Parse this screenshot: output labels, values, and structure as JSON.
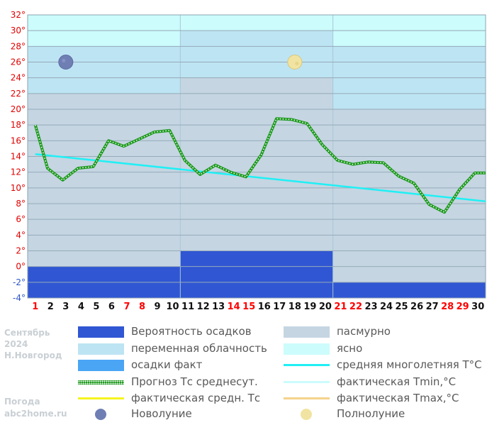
{
  "side": {
    "month": "Сентябрь",
    "year": "2024",
    "city": "Н.Новгород",
    "footer_title": "Погода",
    "footer_site": "abc2home.ru"
  },
  "legend": [
    {
      "label": "Вероятность осадков",
      "kind": "box",
      "color": "#3056d3"
    },
    {
      "label": "пасмурно",
      "kind": "box",
      "color": "#c5d5e2"
    },
    {
      "label": "переменная облачность",
      "kind": "box",
      "color": "#bde4f3"
    },
    {
      "label": "ясно",
      "kind": "box",
      "color": "#ccfcfc"
    },
    {
      "label": "осадки факт",
      "kind": "box",
      "color": "#4aa5f5"
    },
    {
      "label": "средняя многолетняя T°C",
      "kind": "line",
      "color": "#1ff0f5"
    },
    {
      "label": "Прогноз Тс среднесут.",
      "kind": "dotted",
      "color": "#1e9a1e"
    },
    {
      "label": "фактическая Tmin,°C",
      "kind": "line",
      "color": "#ccfcfc"
    },
    {
      "label": "фактическая средн. Тс",
      "kind": "line",
      "color": "#f5f51f"
    },
    {
      "label": "фактическая Tmax,°C",
      "kind": "line",
      "color": "#f5d28c"
    },
    {
      "label": "Новолуние",
      "kind": "moon-new",
      "color": "#6f7fb4"
    },
    {
      "label": "Полнолуние",
      "kind": "moon-full",
      "color": "#f1e4a2"
    }
  ],
  "chart_data": {
    "type": "line",
    "ylim": [
      -4,
      32
    ],
    "yticks": [
      "-4°",
      "-2°",
      "0°",
      "2°",
      "4°",
      "6°",
      "8°",
      "10°",
      "12°",
      "14°",
      "16°",
      "18°",
      "20°",
      "22°",
      "24°",
      "26°",
      "28°",
      "30°",
      "32°"
    ],
    "days": [
      "1",
      "2",
      "3",
      "4",
      "5",
      "6",
      "7",
      "8",
      "9",
      "10",
      "11",
      "12",
      "13",
      "14",
      "15",
      "16",
      "17",
      "18",
      "19",
      "20",
      "21",
      "22",
      "23",
      "24",
      "25",
      "26",
      "27",
      "28",
      "29",
      "30"
    ],
    "weekend_days": [
      "1",
      "7",
      "8",
      "14",
      "15",
      "21",
      "22",
      "28",
      "29"
    ],
    "weekend_color": "#ff0000",
    "periods": [
      {
        "from_day": 1,
        "to_day": 10,
        "overcast_to": 22,
        "partly_cloudy_to": 28,
        "clear_to": 32,
        "precip_probability": 0
      },
      {
        "from_day": 11,
        "to_day": 20,
        "overcast_to": 24,
        "partly_cloudy_to": 30,
        "clear_to": 32,
        "precip_probability": 2
      },
      {
        "from_day": 21,
        "to_day": 30,
        "overcast_to": 20,
        "partly_cloudy_to": 28,
        "clear_to": 32,
        "precip_probability": -2
      }
    ],
    "series": [
      {
        "name": "Прогноз Тс среднесут.",
        "color": "#1e9a1e",
        "points": [
          [
            0.5,
            18
          ],
          [
            1.3,
            12.5
          ],
          [
            2.3,
            11
          ],
          [
            3.3,
            12.5
          ],
          [
            4.3,
            12.7
          ],
          [
            5.3,
            16
          ],
          [
            6.3,
            15.3
          ],
          [
            7.3,
            16.2
          ],
          [
            8.3,
            17.1
          ],
          [
            9.3,
            17.3
          ],
          [
            10.3,
            13.5
          ],
          [
            11.3,
            11.7
          ],
          [
            12.3,
            12.9
          ],
          [
            13.3,
            12
          ],
          [
            14.3,
            11.4
          ],
          [
            15.3,
            14.2
          ],
          [
            16.3,
            18.8
          ],
          [
            17.3,
            18.7
          ],
          [
            18.3,
            18.2
          ],
          [
            19.3,
            15.5
          ],
          [
            20.3,
            13.5
          ],
          [
            21.3,
            13
          ],
          [
            22.3,
            13.3
          ],
          [
            23.3,
            13.2
          ],
          [
            24.3,
            11.5
          ],
          [
            25.3,
            10.6
          ],
          [
            26.3,
            7.9
          ],
          [
            27.3,
            6.9
          ],
          [
            28.3,
            9.8
          ],
          [
            29.3,
            11.9
          ],
          [
            30.0,
            11.9
          ]
        ]
      },
      {
        "name": "средняя многолетняя T°C",
        "color": "#1ff0f5",
        "points": [
          [
            0.5,
            14.3
          ],
          [
            30.0,
            8.3
          ]
        ]
      }
    ],
    "moons": [
      {
        "phase": "new",
        "day": 3,
        "value": 26
      },
      {
        "phase": "full",
        "day": 18,
        "value": 26
      }
    ]
  }
}
